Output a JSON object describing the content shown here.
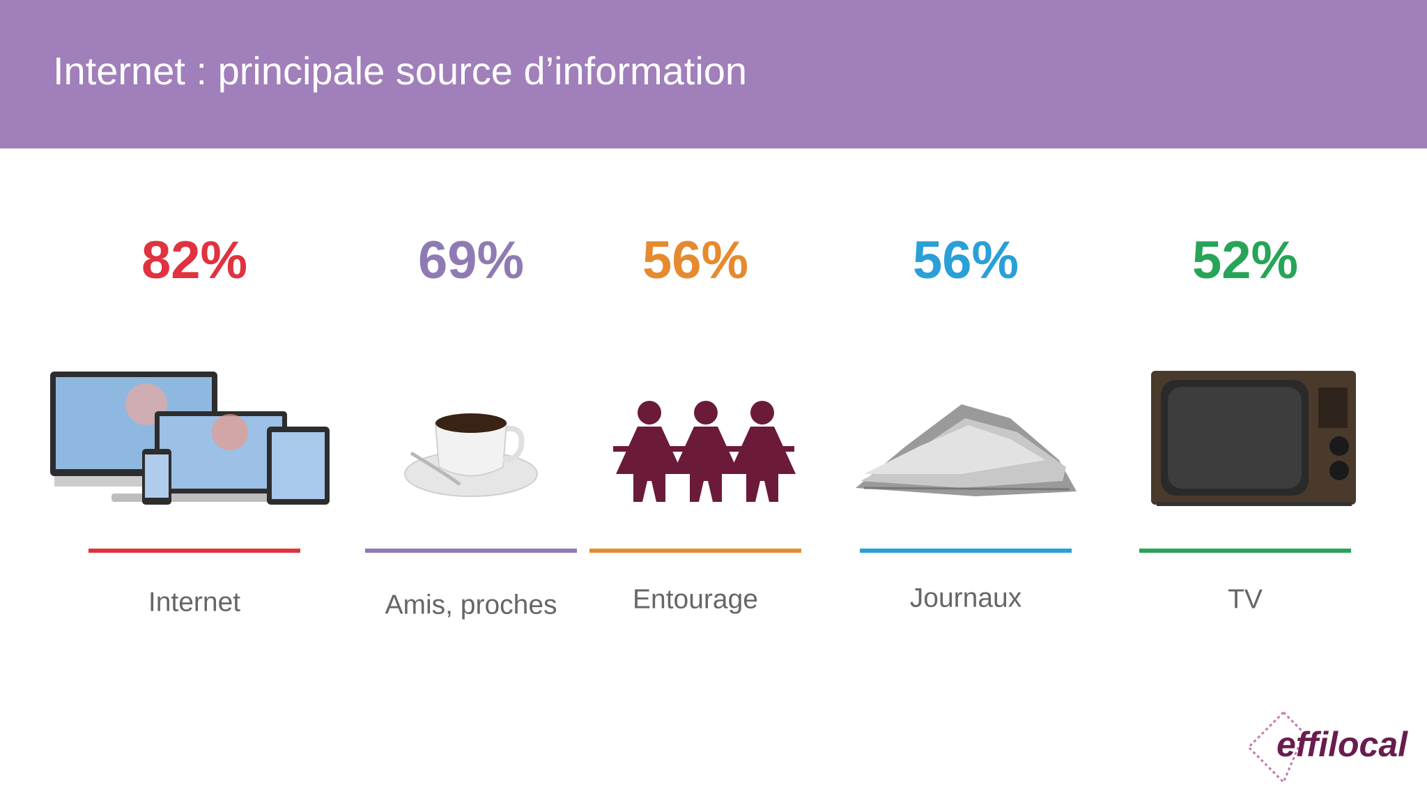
{
  "header": {
    "title": "Internet : principale source d’information"
  },
  "items": [
    {
      "value": "82%",
      "label": "Internet",
      "color": "#e0323f"
    },
    {
      "value": "69%",
      "label": "Amis, proches",
      "color": "#8f7bb3"
    },
    {
      "value": "56%",
      "label": "Entourage",
      "color": "#e58a2e"
    },
    {
      "value": "56%",
      "label": "Journaux",
      "color": "#2a9fd8"
    },
    {
      "value": "52%",
      "label": "TV",
      "color": "#27a457"
    }
  ],
  "logo": {
    "text": "effilocal"
  }
}
